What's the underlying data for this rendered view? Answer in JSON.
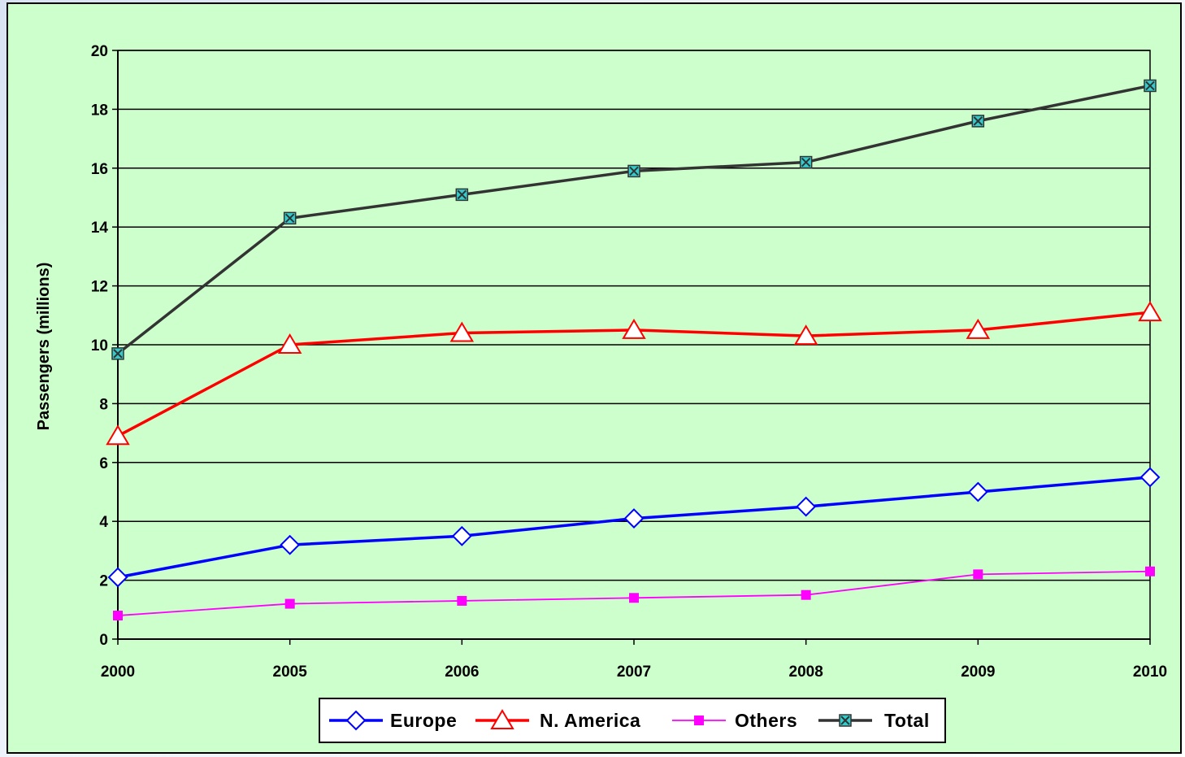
{
  "chart_data": {
    "type": "line",
    "title": "",
    "xlabel": "",
    "ylabel": "Passengers (millions)",
    "categories": [
      "2000",
      "2005",
      "2006",
      "2007",
      "2008",
      "2009",
      "2010"
    ],
    "ylim": [
      0,
      20
    ],
    "yticks": [
      "0",
      "2",
      "4",
      "6",
      "8",
      "10",
      "12",
      "14",
      "16",
      "18",
      "20"
    ],
    "grid": true,
    "legend_position": "bottom-center",
    "series": [
      {
        "name": "Europe",
        "values": [
          2.1,
          3.2,
          3.5,
          4.1,
          4.5,
          5.0,
          5.5
        ],
        "color": "#0000ff",
        "marker": "diamond-open"
      },
      {
        "name": "N. America",
        "values": [
          6.9,
          10.0,
          10.4,
          10.5,
          10.3,
          10.5,
          11.1
        ],
        "color": "#ff0000",
        "marker": "triangle-open"
      },
      {
        "name": "Others",
        "values": [
          0.8,
          1.2,
          1.3,
          1.4,
          1.5,
          2.2,
          2.3
        ],
        "color": "#ff00ff",
        "marker": "square-filled"
      },
      {
        "name": "Total",
        "values": [
          9.7,
          14.3,
          15.1,
          15.9,
          16.2,
          17.6,
          18.8
        ],
        "color": "#333333",
        "marker": "x-square",
        "marker_fill": "#33cccc"
      }
    ]
  }
}
